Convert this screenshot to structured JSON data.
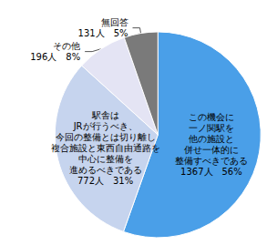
{
  "chart_data": {
    "type": "pie",
    "categories": [
      "この機会に\n一ノ関駅を\n他の施設と\n併せ一体的に\n整備すべきである",
      "駅舎は\nJRが行うべき、\n今回の整備とは切り離し\n複合施設と東西自由通路を\n中心に整備を\n進めるべきである",
      "その他",
      "無回答"
    ],
    "values": [
      1367,
      772,
      196,
      131
    ],
    "value_labels": [
      "1367人　56%",
      "772人　31%",
      "196人　8%",
      "131人　5%"
    ],
    "colors": [
      "#4a9fe8",
      "#c6d4ee",
      "#e4e4f4",
      "#7a7a7a"
    ],
    "data_labels": true
  }
}
